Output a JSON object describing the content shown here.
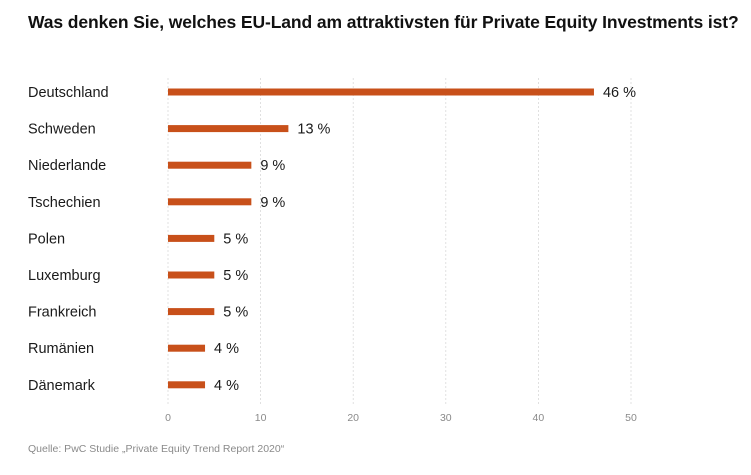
{
  "chart_data": {
    "type": "bar",
    "orientation": "horizontal",
    "title": "Was denken Sie, welches EU-Land am attraktivsten für Private Equity Investments ist?",
    "categories": [
      "Deutschland",
      "Schweden",
      "Niederlande",
      "Tschechien",
      "Polen",
      "Luxemburg",
      "Frankreich",
      "Rumänien",
      "Dänemark"
    ],
    "values": [
      46,
      13,
      9,
      9,
      5,
      5,
      5,
      4,
      4
    ],
    "value_labels": [
      "46 %",
      "13 %",
      "9 %",
      "9 %",
      "5 %",
      "5 %",
      "5 %",
      "4 %",
      "4 %"
    ],
    "xlim": [
      0,
      50
    ],
    "xticks": [
      0,
      10,
      20,
      30,
      40,
      50
    ],
    "xlabel": "",
    "ylabel": "",
    "grid": true,
    "legend": "none",
    "bar_color": "#C8501A",
    "gridline_color": "#D9D9D9",
    "source": "Quelle: PwC Studie „Private Equity Trend Report 2020“"
  }
}
